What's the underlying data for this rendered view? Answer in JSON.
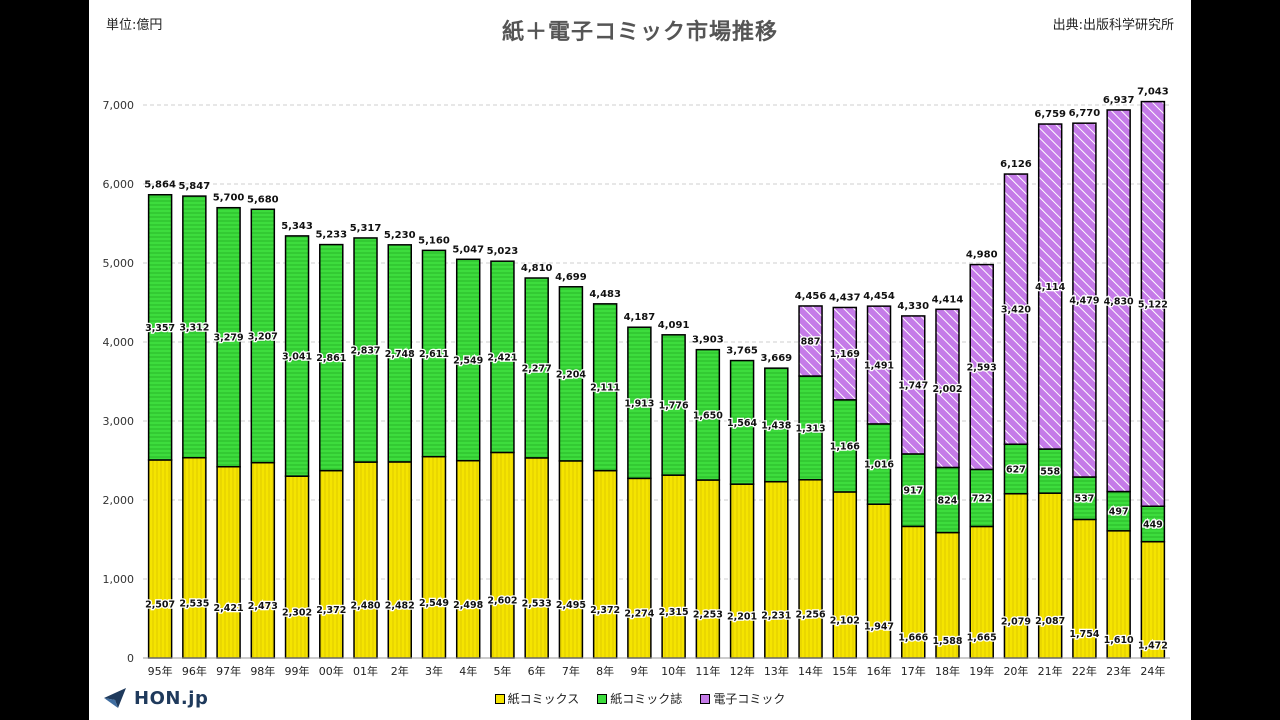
{
  "header": {
    "unit": "単位:億円",
    "title": "紙＋電子コミック市場推移",
    "source": "出典:出版科学研究所"
  },
  "logo": {
    "text": "HON.jp"
  },
  "colors": {
    "paper_comics": "#f5e400",
    "paper_magazines": "#3ddc3d",
    "digital_comics": "#c57be8",
    "grid": "#cfcfcf"
  },
  "chart_data": {
    "type": "bar",
    "stacked": true,
    "title": "紙＋電子コミック市場推移",
    "ylabel": "単位:億円",
    "ylim": [
      0,
      7000
    ],
    "yticks": [
      0,
      1000,
      2000,
      3000,
      4000,
      5000,
      6000,
      7000
    ],
    "ytick_labels": [
      "0",
      "1,000",
      "2,000",
      "3,000",
      "4,000",
      "5,000",
      "6,000",
      "7,000"
    ],
    "grid": true,
    "legend_position": "bottom",
    "categories": [
      "95年",
      "96年",
      "97年",
      "98年",
      "99年",
      "00年",
      "01年",
      "2年",
      "3年",
      "4年",
      "5年",
      "6年",
      "7年",
      "8年",
      "9年",
      "10年",
      "11年",
      "12年",
      "13年",
      "14年",
      "15年",
      "16年",
      "17年",
      "18年",
      "19年",
      "20年",
      "21年",
      "22年",
      "23年",
      "24年"
    ],
    "series": [
      {
        "name": "紙コミックス",
        "values": [
          2507,
          2535,
          2421,
          2473,
          2302,
          2372,
          2480,
          2482,
          2549,
          2498,
          2602,
          2533,
          2495,
          2372,
          2274,
          2315,
          2253,
          2201,
          2231,
          2256,
          2102,
          1947,
          1666,
          1588,
          1665,
          2079,
          2087,
          1754,
          1610,
          1472
        ]
      },
      {
        "name": "紙コミック誌",
        "values": [
          3357,
          3312,
          3279,
          3207,
          3041,
          2861,
          2837,
          2748,
          2611,
          2549,
          2421,
          2277,
          2204,
          2111,
          1913,
          1776,
          1650,
          1564,
          1438,
          1313,
          1166,
          1016,
          917,
          824,
          722,
          627,
          558,
          537,
          497,
          449
        ]
      },
      {
        "name": "電子コミック",
        "values": [
          null,
          null,
          null,
          null,
          null,
          null,
          null,
          null,
          null,
          null,
          null,
          null,
          null,
          null,
          null,
          null,
          null,
          null,
          null,
          887,
          1169,
          1491,
          1747,
          2002,
          2593,
          3420,
          4114,
          4479,
          4830,
          5122
        ]
      }
    ],
    "totals": [
      5864,
      5847,
      5700,
      5680,
      5343,
      5233,
      5317,
      5230,
      5160,
      5047,
      5023,
      4810,
      4699,
      4483,
      4187,
      4091,
      3903,
      3765,
      3669,
      4456,
      4437,
      4454,
      4330,
      4414,
      4980,
      6126,
      6759,
      6770,
      6937,
      7043
    ]
  }
}
